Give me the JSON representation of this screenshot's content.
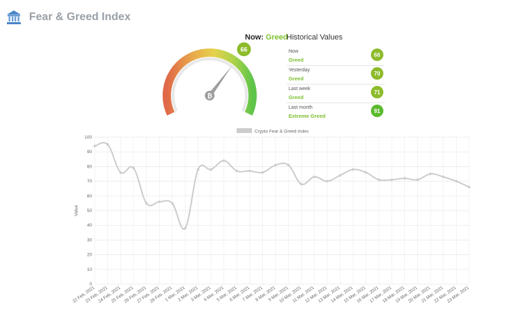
{
  "header": {
    "title": "Fear & Greed Index",
    "logo_icon": "bank-building-icon"
  },
  "now": {
    "label": "Now:",
    "classification": "Greed",
    "value": "66"
  },
  "gauge": {
    "value": 66,
    "min": 0,
    "max": 100,
    "needle_icon": "bitcoin-icon"
  },
  "historical": {
    "title": "Historical Values",
    "items": [
      {
        "period": "Now",
        "classification": "Greed",
        "value": "66",
        "color": "#8dbb2b"
      },
      {
        "period": "Yesterday",
        "classification": "Greed",
        "value": "70",
        "color": "#8dbb2b"
      },
      {
        "period": "Last week",
        "classification": "Greed",
        "value": "71",
        "color": "#8dbb2b"
      },
      {
        "period": "Last month",
        "classification": "Extreme Greed",
        "value": "91",
        "color": "#5cba2e"
      }
    ]
  },
  "chart_data": {
    "type": "line",
    "title": "",
    "legend": {
      "label": "Crypto Fear & Greed Index",
      "placement": "top-center"
    },
    "ylabel": "Value",
    "xlabel": "",
    "ylim": [
      0,
      100
    ],
    "yticks": [
      0,
      10,
      20,
      30,
      40,
      50,
      60,
      70,
      80,
      90,
      100
    ],
    "grid": true,
    "line_color": "#cccccc",
    "categories": [
      "22 Feb, 2021",
      "23 Feb, 2021",
      "24 Feb, 2021",
      "25 Feb, 2021",
      "26 Feb, 2021",
      "27 Feb, 2021",
      "28 Feb, 2021",
      "1 Mar, 2021",
      "2 Mar, 2021",
      "3 Mar, 2021",
      "4 Mar, 2021",
      "5 Mar, 2021",
      "6 Mar, 2021",
      "7 Mar, 2021",
      "8 Mar, 2021",
      "9 Mar, 2021",
      "10 Mar, 2021",
      "11 Mar, 2021",
      "12 Mar, 2021",
      "13 Mar, 2021",
      "14 Mar, 2021",
      "15 Mar, 2021",
      "16 Mar, 2021",
      "17 Mar, 2021",
      "18 Mar, 2021",
      "19 Mar, 2021",
      "20 Mar, 2021",
      "21 Mar, 2021",
      "22 Mar, 2021",
      "23 Mar, 2021"
    ],
    "series": [
      {
        "name": "Crypto Fear & Greed Index",
        "values": [
          94,
          95,
          76,
          79,
          55,
          56,
          55,
          38,
          78,
          78,
          84,
          77,
          77,
          76,
          81,
          81,
          68,
          73,
          70,
          74,
          78,
          76,
          71,
          71,
          72,
          71,
          75,
          73,
          70,
          66
        ]
      }
    ]
  }
}
